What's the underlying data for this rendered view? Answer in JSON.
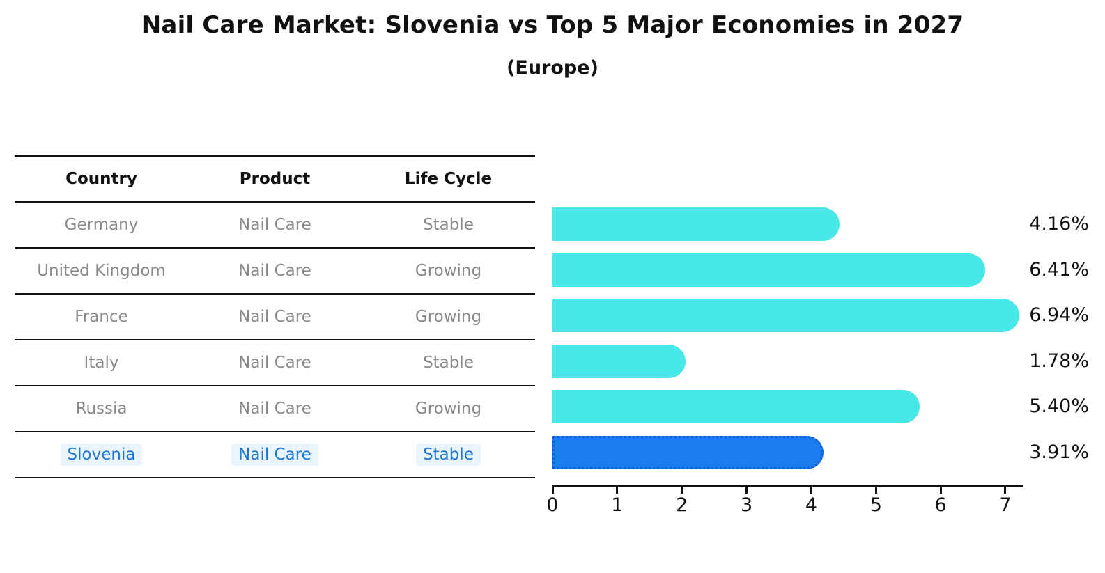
{
  "title": "Nail Care Market: Slovenia vs Top 5 Major Economies in 2027",
  "subtitle": "(Europe)",
  "table": {
    "headers": [
      "Country",
      "Product",
      "Life Cycle"
    ],
    "rows": [
      {
        "country": "Germany",
        "product": "Nail Care",
        "life_cycle": "Stable",
        "highlight": false
      },
      {
        "country": "United Kingdom",
        "product": "Nail Care",
        "life_cycle": "Growing",
        "highlight": false
      },
      {
        "country": "France",
        "product": "Nail Care",
        "life_cycle": "Growing",
        "highlight": false
      },
      {
        "country": "Italy",
        "product": "Nail Care",
        "life_cycle": "Stable",
        "highlight": false
      },
      {
        "country": "Russia",
        "product": "Nail Care",
        "life_cycle": "Growing",
        "highlight": false
      },
      {
        "country": "Slovenia",
        "product": "Nail Care",
        "life_cycle": "Stable",
        "highlight": true
      }
    ]
  },
  "chart_data": {
    "type": "bar",
    "orientation": "horizontal",
    "title": "Nail Care Market: Slovenia vs Top 5 Major Economies in 2027",
    "subtitle": "(Europe)",
    "categories": [
      "Germany",
      "United Kingdom",
      "France",
      "Italy",
      "Russia",
      "Slovenia"
    ],
    "values": [
      4.16,
      6.41,
      6.94,
      1.78,
      5.4,
      3.91
    ],
    "value_labels": [
      "4.16%",
      "6.41%",
      "6.94%",
      "1.78%",
      "5.40%",
      "3.91%"
    ],
    "highlight_index": 5,
    "xlim": [
      0,
      7.28
    ],
    "xticks": [
      0,
      1,
      2,
      3,
      4,
      5,
      6,
      7
    ],
    "grid": false,
    "legend": null,
    "colors": {
      "bar_default": "#48E8E8",
      "bar_highlight": "#1B7CED",
      "bar_highlight_border": "#0D5FD6",
      "muted_text": "#8A8A8A",
      "highlight_text": "#1E78D2",
      "axis": "#111111"
    }
  }
}
